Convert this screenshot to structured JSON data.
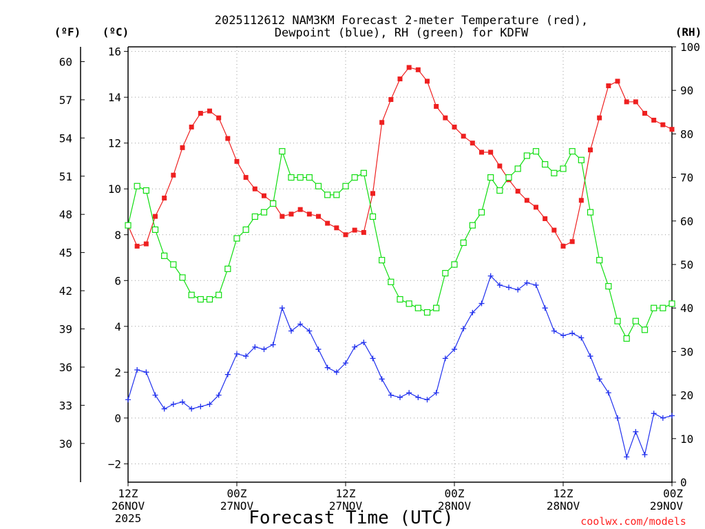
{
  "chart_data": {
    "type": "line",
    "title_line1": "2025112612 NAM3KM Forecast 2-meter Temperature (red),",
    "title_line2": "Dewpoint (blue), RH (green) for KDFW",
    "xlabel": "Forecast Time (UTC)",
    "credit": "coolwx.com/models",
    "units": {
      "fahrenheit": "(ºF)",
      "celsius": "(ºC)",
      "rh": "(RH)"
    },
    "x_range_hours": [
      0,
      60
    ],
    "celsius_range": [
      -2.8,
      16.2
    ],
    "rh_range": [
      0,
      100
    ],
    "celsius_ticks": [
      -2,
      0,
      2,
      4,
      6,
      8,
      10,
      12,
      14,
      16
    ],
    "fahrenheit_ticks": [
      30,
      33,
      36,
      39,
      42,
      45,
      48,
      51,
      54,
      57,
      60
    ],
    "rh_ticks": [
      0,
      10,
      20,
      30,
      40,
      50,
      60,
      70,
      80,
      90,
      100
    ],
    "x_ticks": [
      {
        "hour": 0,
        "lines": [
          "12Z",
          "26NOV",
          "2025"
        ]
      },
      {
        "hour": 12,
        "lines": [
          "00Z",
          "27NOV"
        ]
      },
      {
        "hour": 24,
        "lines": [
          "12Z",
          "27NOV"
        ]
      },
      {
        "hour": 36,
        "lines": [
          "00Z",
          "28NOV"
        ]
      },
      {
        "hour": 48,
        "lines": [
          "12Z",
          "28NOV"
        ]
      },
      {
        "hour": 60,
        "lines": [
          "00Z",
          "29NOV"
        ]
      }
    ],
    "hours": [
      0,
      1,
      2,
      3,
      4,
      5,
      6,
      7,
      8,
      9,
      10,
      11,
      12,
      13,
      14,
      15,
      16,
      17,
      18,
      19,
      20,
      21,
      22,
      23,
      24,
      25,
      26,
      27,
      28,
      29,
      30,
      31,
      32,
      33,
      34,
      35,
      36,
      37,
      38,
      39,
      40,
      41,
      42,
      43,
      44,
      45,
      46,
      47,
      48,
      49,
      50,
      51,
      52,
      53,
      54,
      55,
      56,
      57,
      58,
      59,
      60
    ],
    "series": [
      {
        "name": "2-meter Temperature",
        "axis": "celsius",
        "color": "#ee2020",
        "marker": "filled-square",
        "values": [
          8.4,
          7.5,
          7.6,
          8.8,
          9.6,
          10.6,
          11.8,
          12.7,
          13.3,
          13.4,
          13.1,
          12.2,
          11.2,
          10.5,
          10.0,
          9.7,
          9.4,
          8.8,
          8.9,
          9.1,
          8.9,
          8.8,
          8.5,
          8.3,
          8.0,
          8.2,
          8.1,
          9.8,
          12.9,
          13.9,
          14.8,
          15.3,
          15.2,
          14.7,
          13.6,
          13.1,
          12.7,
          12.3,
          12.0,
          11.6,
          11.6,
          11.0,
          10.4,
          9.9,
          9.5,
          9.2,
          8.7,
          8.2,
          7.5,
          7.7,
          9.5,
          11.7,
          13.1,
          14.5,
          14.7,
          13.8,
          13.8,
          13.3,
          13.0,
          12.8,
          12.6
        ]
      },
      {
        "name": "Dewpoint",
        "axis": "celsius",
        "color": "#2030ee",
        "marker": "plus",
        "values": [
          0.8,
          2.1,
          2.0,
          1.0,
          0.4,
          0.6,
          0.7,
          0.4,
          0.5,
          0.6,
          1.0,
          1.9,
          2.8,
          2.7,
          3.1,
          3.0,
          3.2,
          4.8,
          3.8,
          4.1,
          3.8,
          3.0,
          2.2,
          2.0,
          2.4,
          3.1,
          3.3,
          2.6,
          1.7,
          1.0,
          0.9,
          1.1,
          0.9,
          0.8,
          1.1,
          2.6,
          3.0,
          3.9,
          4.6,
          5.0,
          6.2,
          5.8,
          5.7,
          5.6,
          5.9,
          5.8,
          4.8,
          3.8,
          3.6,
          3.7,
          3.5,
          2.7,
          1.7,
          1.1,
          0.0,
          -1.7,
          -0.6,
          -1.6,
          0.2,
          0.0,
          0.1
        ]
      },
      {
        "name": "RH",
        "axis": "rh",
        "color": "#10dd10",
        "marker": "hollow-square",
        "values": [
          59,
          68,
          67,
          58,
          52,
          50,
          47,
          43,
          42,
          42,
          43,
          49,
          56,
          58,
          61,
          62,
          64,
          76,
          70,
          70,
          70,
          68,
          66,
          66,
          68,
          70,
          71,
          61,
          51,
          46,
          42,
          41,
          40,
          39,
          40,
          48,
          50,
          55,
          59,
          62,
          70,
          67,
          70,
          72,
          75,
          76,
          73,
          71,
          72,
          76,
          74,
          62,
          51,
          45,
          37,
          33,
          37,
          35,
          40,
          40,
          41
        ]
      }
    ]
  }
}
